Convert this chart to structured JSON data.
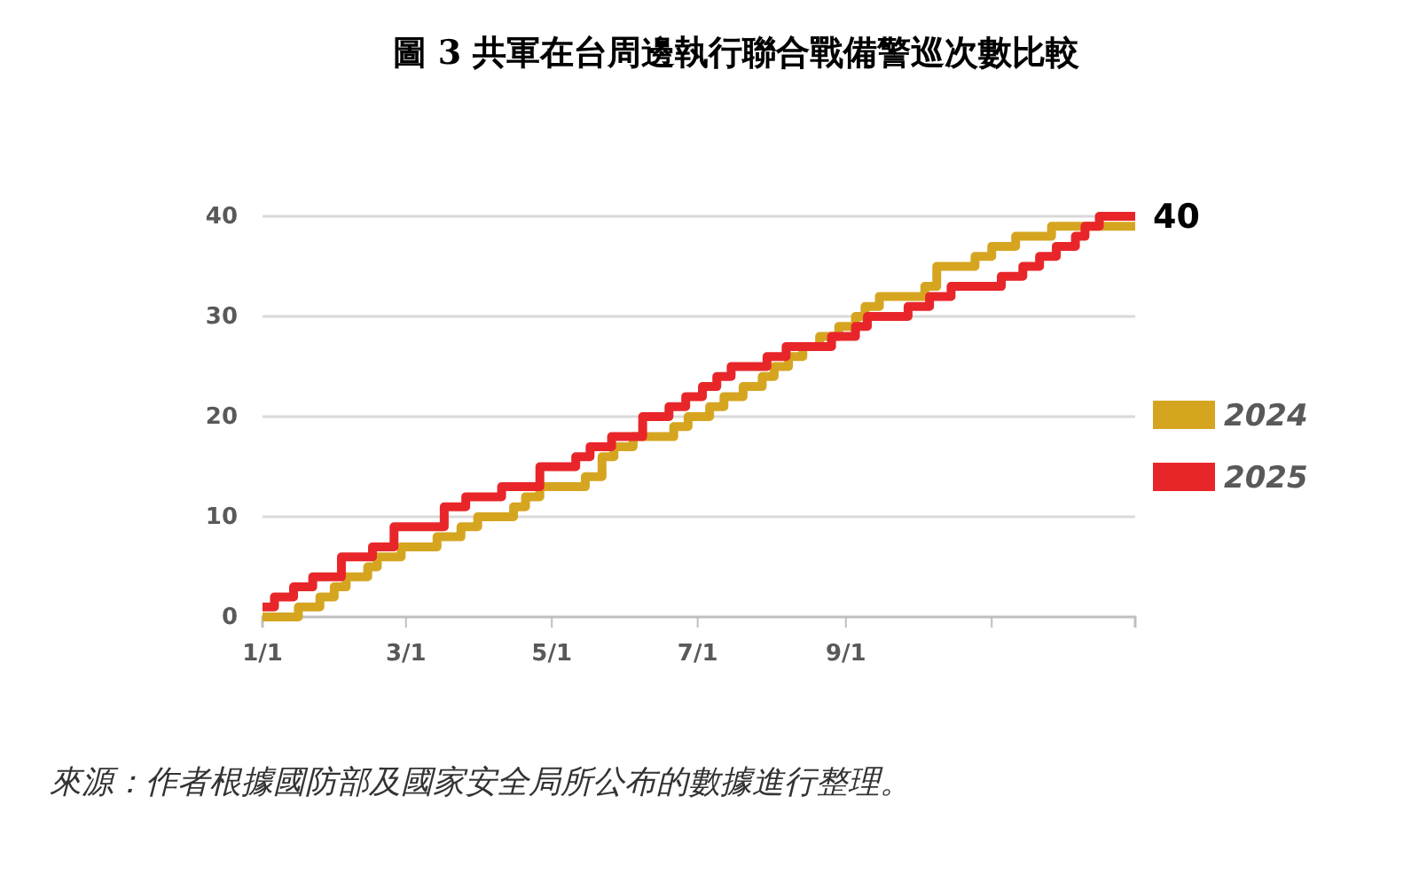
{
  "chart_data": {
    "type": "step",
    "title": "圖 3  共軍在台周邊執行聯合戰備警巡次數比較",
    "annotations": [
      {
        "text": "40",
        "x": "--12-31",
        "y": 40
      },
      "來源：作者根據國防部及國家安全局所公布的數據進行整理。"
    ],
    "xlim": [
      "--01-01",
      "--12-31"
    ],
    "xticks": [
      {
        "value": "--01-01",
        "label": "1/1"
      },
      {
        "value": "--03-01",
        "label": "3/1"
      },
      {
        "value": "--05-01",
        "label": "5/1"
      },
      {
        "value": "--07-01",
        "label": "7/1"
      },
      {
        "value": "--09-01",
        "label": "9/1"
      },
      {
        "value": "--11-01",
        "label": null
      }
    ],
    "ylim": [
      0,
      40
    ],
    "yticks": [
      0,
      10,
      20,
      30,
      40
    ],
    "grid": "y",
    "legend": "right",
    "line_style": "solid",
    "marker": "none",
    "series": [
      {
        "name": "2024",
        "color": "#d6a520",
        "x": [
          "--01-01",
          "--01-16",
          "--01-25",
          "--01-31",
          "--02-05",
          "--02-14",
          "--02-18",
          "--02-28",
          "--03-14",
          "--03-24",
          "--03-31",
          "--04-15",
          "--04-20",
          "--04-26",
          "--05-15",
          "--05-22",
          "--05-27",
          "--06-04",
          "--06-21",
          "--06-27",
          "--07-06",
          "--07-12",
          "--07-20",
          "--07-28",
          "--08-02",
          "--08-08",
          "--08-14",
          "--08-21",
          "--08-29",
          "--09-05",
          "--09-09",
          "--09-15",
          "--10-04",
          "--10-09",
          "--10-25",
          "--11-01",
          "--11-11",
          "--11-26",
          "--12-31"
        ],
        "values": [
          0,
          1,
          2,
          3,
          4,
          5,
          6,
          7,
          8,
          9,
          10,
          11,
          12,
          13,
          14,
          16,
          17,
          18,
          19,
          20,
          21,
          22,
          23,
          24,
          25,
          26,
          27,
          28,
          29,
          30,
          31,
          32,
          33,
          35,
          36,
          37,
          38,
          39,
          39
        ]
      },
      {
        "name": "2025",
        "color": "#e8262a",
        "x": [
          "--01-01",
          "--01-06",
          "--01-14",
          "--01-22",
          "--02-03",
          "--02-16",
          "--02-25",
          "--03-17",
          "--03-26",
          "--04-10",
          "--04-26",
          "--05-11",
          "--05-17",
          "--05-26",
          "--06-08",
          "--06-19",
          "--06-26",
          "--07-03",
          "--07-09",
          "--07-15",
          "--07-30",
          "--08-07",
          "--08-26",
          "--09-05",
          "--09-10",
          "--09-27",
          "--10-06",
          "--10-15",
          "--11-05",
          "--11-14",
          "--11-21",
          "--11-28",
          "--12-06",
          "--12-10",
          "--12-16",
          "--12-31"
        ],
        "values": [
          1,
          2,
          3,
          4,
          6,
          7,
          9,
          11,
          12,
          13,
          15,
          16,
          17,
          18,
          20,
          21,
          22,
          23,
          24,
          25,
          26,
          27,
          28,
          29,
          30,
          31,
          32,
          33,
          34,
          35,
          36,
          37,
          38,
          39,
          40,
          40
        ]
      }
    ]
  }
}
